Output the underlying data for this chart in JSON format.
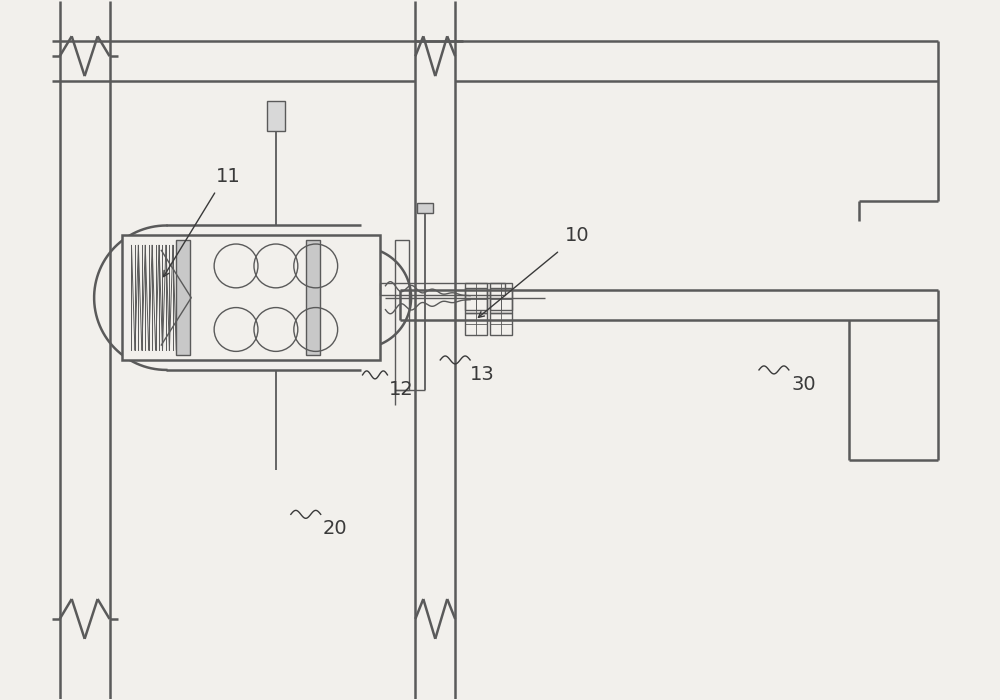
{
  "bg_color": "#f2f0ec",
  "line_color": "#5a5a5a",
  "lw_main": 1.8,
  "lw_thin": 1.0,
  "lw_detail": 0.8,
  "fig_width": 10,
  "fig_height": 7
}
